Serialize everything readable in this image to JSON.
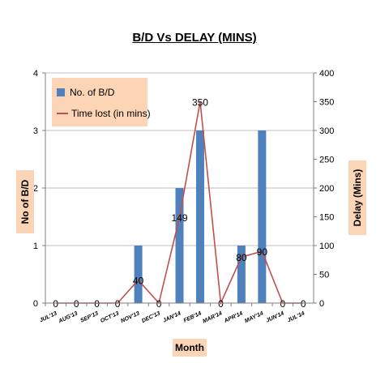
{
  "chart_data": {
    "type": "bar",
    "title": "B/D Vs DELAY (MINS)",
    "xlabel": "Month",
    "ylabel": "No of B/D",
    "y2label": "Delay (Mins)",
    "categories": [
      "JUL'13",
      "AUG'13",
      "SEP'13",
      "OCT'13",
      "NOV'13",
      "DEC'13",
      "JAN'14",
      "FEB'14",
      "MAR'14",
      "APR'14",
      "MAY'14",
      "JUN'14",
      "JUL'14"
    ],
    "ylim": [
      0,
      4
    ],
    "y_ticks": [
      "0",
      "1",
      "2",
      "3",
      "4"
    ],
    "y2lim": [
      0,
      400
    ],
    "y2_ticks": [
      "0",
      "50",
      "100",
      "150",
      "200",
      "250",
      "300",
      "350",
      "400"
    ],
    "legend_position": "top-left",
    "series": [
      {
        "name": "No. of B/D",
        "type": "bar",
        "axis": "left",
        "color": "#4f81bd",
        "values": [
          0,
          0,
          0,
          0,
          1,
          0,
          2,
          3,
          0,
          1,
          3,
          0,
          0
        ]
      },
      {
        "name": "Time lost (in mins)",
        "type": "line",
        "axis": "right",
        "color": "#c0504d",
        "values": [
          0,
          0,
          0,
          0,
          40,
          0,
          149,
          350,
          0,
          80,
          90,
          0,
          0
        ],
        "data_labels": [
          "0",
          "0",
          "0",
          "0",
          "40",
          "0",
          "149",
          "350",
          "0",
          "80",
          "90",
          "0",
          "0"
        ]
      }
    ]
  }
}
